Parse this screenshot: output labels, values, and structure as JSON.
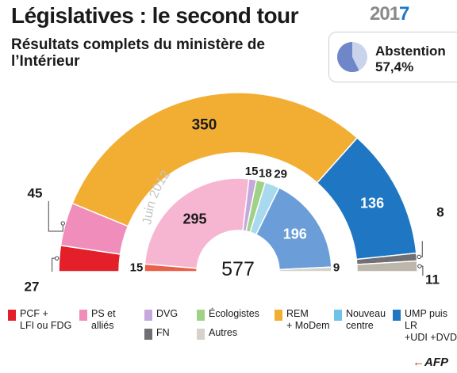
{
  "header": {
    "title": "Législatives : le second tour",
    "subtitle": "Résultats complets du ministère de l’Intérieur",
    "year_prefix": "201",
    "year_suffix": "7"
  },
  "abstention": {
    "label": "Abstention",
    "value": "57,4%",
    "fraction": 0.574
  },
  "chart_data": [
    {
      "type": "pie",
      "chart": "semicircle-parliament",
      "period": "2017",
      "series": [
        {
          "key": "pcf",
          "value": 27,
          "label": "27",
          "color": "#e3202a"
        },
        {
          "key": "ps",
          "value": 45,
          "label": "45",
          "color": "#f08dbb"
        },
        {
          "key": "rem",
          "value": 350,
          "label": "350",
          "color": "#f2ae33"
        },
        {
          "key": "ump",
          "value": 136,
          "label": "136",
          "color": "#1f77c4"
        },
        {
          "key": "fn",
          "value": 8,
          "label": "8",
          "color": "#6f6f74"
        },
        {
          "key": "autres",
          "value": 11,
          "label": "11",
          "color": "#bcb6ab"
        }
      ]
    },
    {
      "type": "pie",
      "chart": "semicircle-parliament",
      "period": "Juin 2012",
      "period_label": "Juin 2012",
      "total_label": "577",
      "series": [
        {
          "key": "pcf",
          "value": 15,
          "label": "15",
          "color": "#e8614a"
        },
        {
          "key": "ps",
          "value": 295,
          "label": "295",
          "color": "#f6b6d2"
        },
        {
          "key": "dvg",
          "value": 15,
          "label": "15",
          "color": "#c6a9dc"
        },
        {
          "key": "eco",
          "value": 18,
          "label": "18",
          "color": "#9fd287"
        },
        {
          "key": "nc",
          "value": 29,
          "label": "29",
          "color": "#a9d9ef"
        },
        {
          "key": "ump",
          "value": 196,
          "label": "196",
          "color": "#6b9ed8"
        },
        {
          "key": "fn",
          "value": 0,
          "label": "",
          "color": "#6f6f74"
        },
        {
          "key": "autres",
          "value": 9,
          "label": "9",
          "color": "#d6d2cb"
        }
      ]
    }
  ],
  "legend": [
    {
      "key": "pcf",
      "label": "PCF +\nLFI ou FDG",
      "color": "#e3202a"
    },
    {
      "key": "ps",
      "label": "PS et\nalliés",
      "color": "#f08dbb"
    },
    {
      "key": "dvg",
      "label": "DVG",
      "color": "#c6a9dc"
    },
    {
      "key": "fn",
      "label": "FN",
      "color": "#6f6f74"
    },
    {
      "key": "eco",
      "label": "Écologistes",
      "color": "#9fd287"
    },
    {
      "key": "autres",
      "label": "Autres",
      "color": "#d6d2cb"
    },
    {
      "key": "rem",
      "label": "REM\n+ MoDem",
      "color": "#f2ae33"
    },
    {
      "key": "nc",
      "label": "Nouveau\ncentre",
      "color": "#6fc3e6"
    },
    {
      "key": "ump",
      "label": "UMP puis LR\n+UDI +DVD",
      "color": "#1f77c4"
    }
  ],
  "credit": {
    "brand": "AFP",
    "dot": "←"
  }
}
